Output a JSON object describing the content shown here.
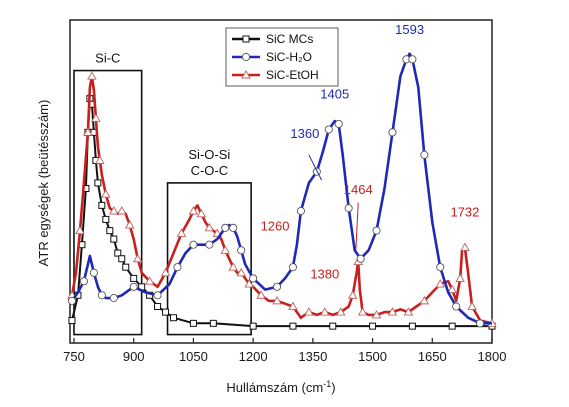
{
  "chart_data": {
    "type": "line",
    "title": "",
    "xlabel": "Hullámszám (cm",
    "xlabel_sup": "-1",
    "xlabel_close": ")",
    "ylabel": "ATR egységek (beütésszám)",
    "xlim": [
      740,
      1800
    ],
    "ylim": [
      -0.05,
      1.1
    ],
    "y_ticks_shown": false,
    "grid": false,
    "legend_position": "top-center",
    "xticks": [
      750,
      900,
      1050,
      1200,
      1350,
      1500,
      1650,
      1800
    ],
    "series": [
      {
        "name": "SiC MCs",
        "color": "#111111",
        "marker": "square",
        "x": [
          745,
          760,
          770,
          780,
          785,
          790,
          795,
          800,
          805,
          810,
          820,
          830,
          840,
          850,
          860,
          870,
          880,
          900,
          920,
          940,
          960,
          980,
          1000,
          1050,
          1100,
          1200,
          1300,
          1400,
          1500,
          1600,
          1700,
          1800
        ],
        "y": [
          0.03,
          0.12,
          0.3,
          0.5,
          0.7,
          0.82,
          0.8,
          0.7,
          0.6,
          0.52,
          0.44,
          0.39,
          0.35,
          0.32,
          0.27,
          0.25,
          0.22,
          0.18,
          0.15,
          0.12,
          0.08,
          0.06,
          0.04,
          0.02,
          0.02,
          0.01,
          0.01,
          0.01,
          0.01,
          0.01,
          0.01,
          0.01
        ]
      },
      {
        "name": "SiC-H₂O",
        "color": "#1f2ab4",
        "marker": "circle",
        "x": [
          745,
          760,
          775,
          790,
          800,
          810,
          820,
          830,
          850,
          870,
          900,
          930,
          960,
          990,
          1010,
          1030,
          1050,
          1070,
          1090,
          1110,
          1130,
          1140,
          1150,
          1160,
          1170,
          1180,
          1200,
          1230,
          1260,
          1280,
          1300,
          1310,
          1320,
          1340,
          1360,
          1375,
          1390,
          1405,
          1415,
          1425,
          1440,
          1455,
          1470,
          1490,
          1510,
          1530,
          1550,
          1570,
          1585,
          1593,
          1600,
          1615,
          1630,
          1650,
          1670,
          1690,
          1710,
          1740,
          1770,
          1800
        ],
        "y": [
          0.1,
          0.13,
          0.17,
          0.26,
          0.2,
          0.15,
          0.12,
          0.11,
          0.11,
          0.12,
          0.15,
          0.13,
          0.12,
          0.16,
          0.22,
          0.27,
          0.3,
          0.3,
          0.3,
          0.32,
          0.36,
          0.37,
          0.36,
          0.33,
          0.28,
          0.23,
          0.18,
          0.14,
          0.15,
          0.18,
          0.22,
          0.3,
          0.42,
          0.52,
          0.56,
          0.63,
          0.71,
          0.74,
          0.73,
          0.62,
          0.43,
          0.28,
          0.25,
          0.28,
          0.35,
          0.5,
          0.7,
          0.9,
          0.96,
          0.98,
          0.96,
          0.86,
          0.62,
          0.38,
          0.22,
          0.13,
          0.08,
          0.04,
          0.02,
          0.02
        ]
      },
      {
        "name": "SiC-EtOH",
        "color": "#c8201c",
        "marker": "triangle",
        "x": [
          745,
          755,
          765,
          775,
          785,
          790,
          795,
          800,
          805,
          810,
          815,
          820,
          830,
          840,
          850,
          860,
          870,
          880,
          890,
          900,
          910,
          920,
          940,
          960,
          980,
          1000,
          1020,
          1040,
          1050,
          1060,
          1070,
          1080,
          1090,
          1100,
          1110,
          1120,
          1130,
          1140,
          1150,
          1160,
          1170,
          1180,
          1190,
          1200,
          1220,
          1240,
          1260,
          1280,
          1300,
          1320,
          1340,
          1360,
          1380,
          1400,
          1420,
          1440,
          1450,
          1460,
          1464,
          1468,
          1475,
          1490,
          1510,
          1530,
          1550,
          1570,
          1590,
          1610,
          1630,
          1650,
          1670,
          1690,
          1700,
          1710,
          1720,
          1725,
          1732,
          1740,
          1750,
          1770,
          1800
        ],
        "y": [
          0.12,
          0.2,
          0.35,
          0.52,
          0.7,
          0.86,
          0.9,
          0.85,
          0.75,
          0.65,
          0.6,
          0.55,
          0.48,
          0.43,
          0.42,
          0.41,
          0.42,
          0.41,
          0.37,
          0.32,
          0.25,
          0.2,
          0.17,
          0.15,
          0.2,
          0.27,
          0.34,
          0.39,
          0.42,
          0.44,
          0.41,
          0.38,
          0.36,
          0.35,
          0.34,
          0.32,
          0.28,
          0.25,
          0.22,
          0.2,
          0.2,
          0.18,
          0.16,
          0.15,
          0.12,
          0.1,
          0.1,
          0.09,
          0.08,
          0.04,
          0.06,
          0.05,
          0.06,
          0.05,
          0.06,
          0.08,
          0.12,
          0.2,
          0.24,
          0.14,
          0.06,
          0.05,
          0.05,
          0.06,
          0.06,
          0.07,
          0.06,
          0.08,
          0.1,
          0.13,
          0.16,
          0.17,
          0.14,
          0.1,
          0.18,
          0.28,
          0.29,
          0.2,
          0.08,
          0.03,
          0.02
        ]
      }
    ],
    "annotations": [
      {
        "text": "1593",
        "x": 1593,
        "y": 1.05,
        "color": "#1f2ab4"
      },
      {
        "text": "1405",
        "x": 1405,
        "y": 0.82,
        "color": "#1f2ab4"
      },
      {
        "text": "1360",
        "x": 1330,
        "y": 0.68,
        "color": "#1f2ab4"
      },
      {
        "text": "1464",
        "x": 1464,
        "y": 0.48,
        "color": "#c8201c"
      },
      {
        "text": "1260",
        "x": 1255,
        "y": 0.35,
        "color": "#c8201c"
      },
      {
        "text": "1380",
        "x": 1380,
        "y": 0.18,
        "color": "#c8201c"
      },
      {
        "text": "1732",
        "x": 1732,
        "y": 0.4,
        "color": "#c8201c"
      }
    ],
    "boxes": [
      {
        "label_lines": [
          "Si-C"
        ],
        "x0": 750,
        "x1": 920,
        "y0": -0.02,
        "y1": 0.92
      },
      {
        "label_lines": [
          "Si-O-Si",
          "C-O-C"
        ],
        "x0": 985,
        "x1": 1195,
        "y0": -0.02,
        "y1": 0.52
      }
    ]
  }
}
